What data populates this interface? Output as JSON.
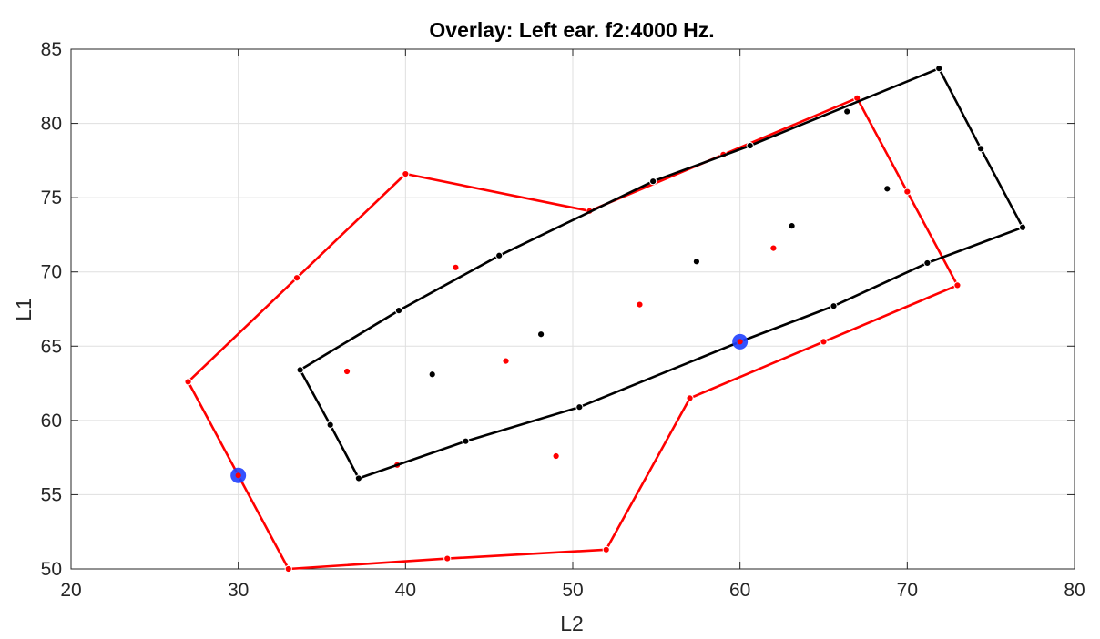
{
  "chart_data": {
    "type": "scatter",
    "title": "Overlay: Left ear. f2:4000 Hz.",
    "xlabel": "L2",
    "ylabel": "L1",
    "xlim": [
      20,
      80
    ],
    "ylim": [
      50,
      85
    ],
    "xticks": [
      20,
      30,
      40,
      50,
      60,
      70,
      80
    ],
    "yticks": [
      50,
      55,
      60,
      65,
      70,
      75,
      80,
      85
    ],
    "grid": true,
    "series": [
      {
        "color": "#ff0000",
        "boundary": [
          [
            27.0,
            62.6
          ],
          [
            33.5,
            69.6
          ],
          [
            40.0,
            76.6
          ],
          [
            51.0,
            74.1
          ],
          [
            59.0,
            77.9
          ],
          [
            67.0,
            81.7
          ],
          [
            70.0,
            75.4
          ],
          [
            73.0,
            69.1
          ],
          [
            65.0,
            65.3
          ],
          [
            57.0,
            61.5
          ],
          [
            52.0,
            51.3
          ],
          [
            42.5,
            50.7
          ],
          [
            33.0,
            50.0
          ],
          [
            30.0,
            56.3
          ]
        ],
        "interior": [
          [
            36.5,
            63.3
          ],
          [
            43.0,
            70.3
          ],
          [
            46.0,
            64.0
          ],
          [
            49.0,
            57.6
          ],
          [
            54.0,
            67.8
          ],
          [
            62.0,
            71.6
          ],
          [
            39.5,
            57.0
          ]
        ]
      },
      {
        "color": "#000000",
        "boundary": [
          [
            33.7,
            63.4
          ],
          [
            39.6,
            67.4
          ],
          [
            45.6,
            71.1
          ],
          [
            54.8,
            76.1
          ],
          [
            60.6,
            78.5
          ],
          [
            71.9,
            83.7
          ],
          [
            74.4,
            78.3
          ],
          [
            76.9,
            73.0
          ],
          [
            71.2,
            70.6
          ],
          [
            65.6,
            67.7
          ],
          [
            60.0,
            65.3
          ],
          [
            50.4,
            60.9
          ],
          [
            43.6,
            58.6
          ],
          [
            37.2,
            56.1
          ],
          [
            35.5,
            59.7
          ]
        ],
        "interior": [
          [
            41.6,
            63.1
          ],
          [
            48.1,
            65.8
          ],
          [
            57.4,
            70.7
          ],
          [
            63.1,
            73.1
          ],
          [
            66.4,
            80.8
          ],
          [
            68.8,
            75.6
          ]
        ]
      }
    ],
    "highlighted_points": [
      [
        30.0,
        56.3
      ],
      [
        60.0,
        65.3
      ]
    ],
    "highlight_color": "#1f3fff"
  }
}
